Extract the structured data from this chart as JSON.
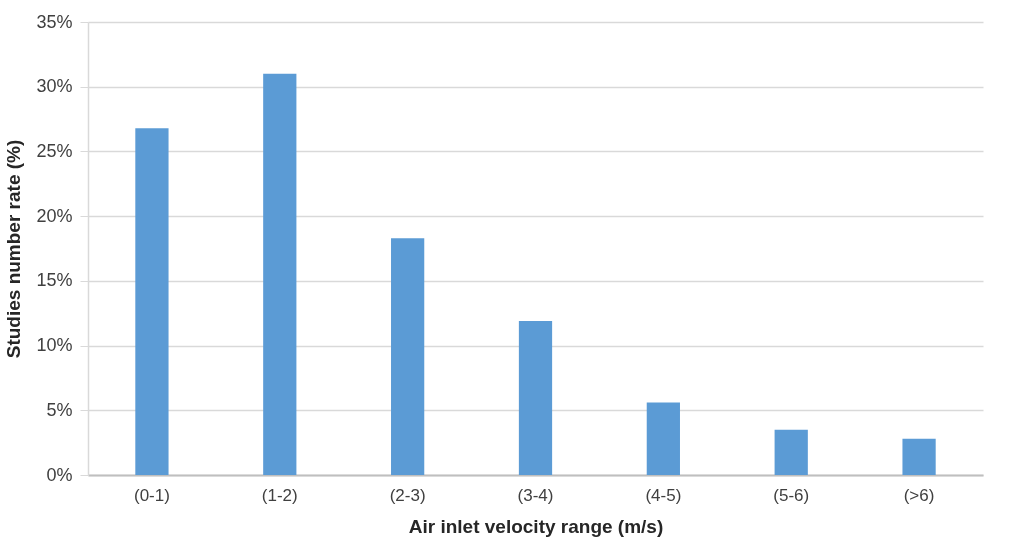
{
  "chart_data": {
    "type": "bar",
    "xlabel": "Air inlet velocity range (m/s)",
    "ylabel": "Studies number rate (%)",
    "categories": [
      "(0-1)",
      "(1-2)",
      "(2-3)",
      "(3-4)",
      "(4-5)",
      "(5-6)",
      "(>6)"
    ],
    "values": [
      26.8,
      31.0,
      18.3,
      11.9,
      5.6,
      3.5,
      2.8
    ],
    "color": "#5b9bd5",
    "ylim": [
      0,
      35
    ],
    "yticks": [
      {
        "value": 0,
        "label": "0%"
      },
      {
        "value": 5,
        "label": "5%"
      },
      {
        "value": 10,
        "label": "10%"
      },
      {
        "value": 15,
        "label": "15%"
      },
      {
        "value": 20,
        "label": "20%"
      },
      {
        "value": 25,
        "label": "25%"
      },
      {
        "value": 30,
        "label": "30%"
      },
      {
        "value": 35,
        "label": "35%"
      }
    ],
    "grid": "y"
  }
}
